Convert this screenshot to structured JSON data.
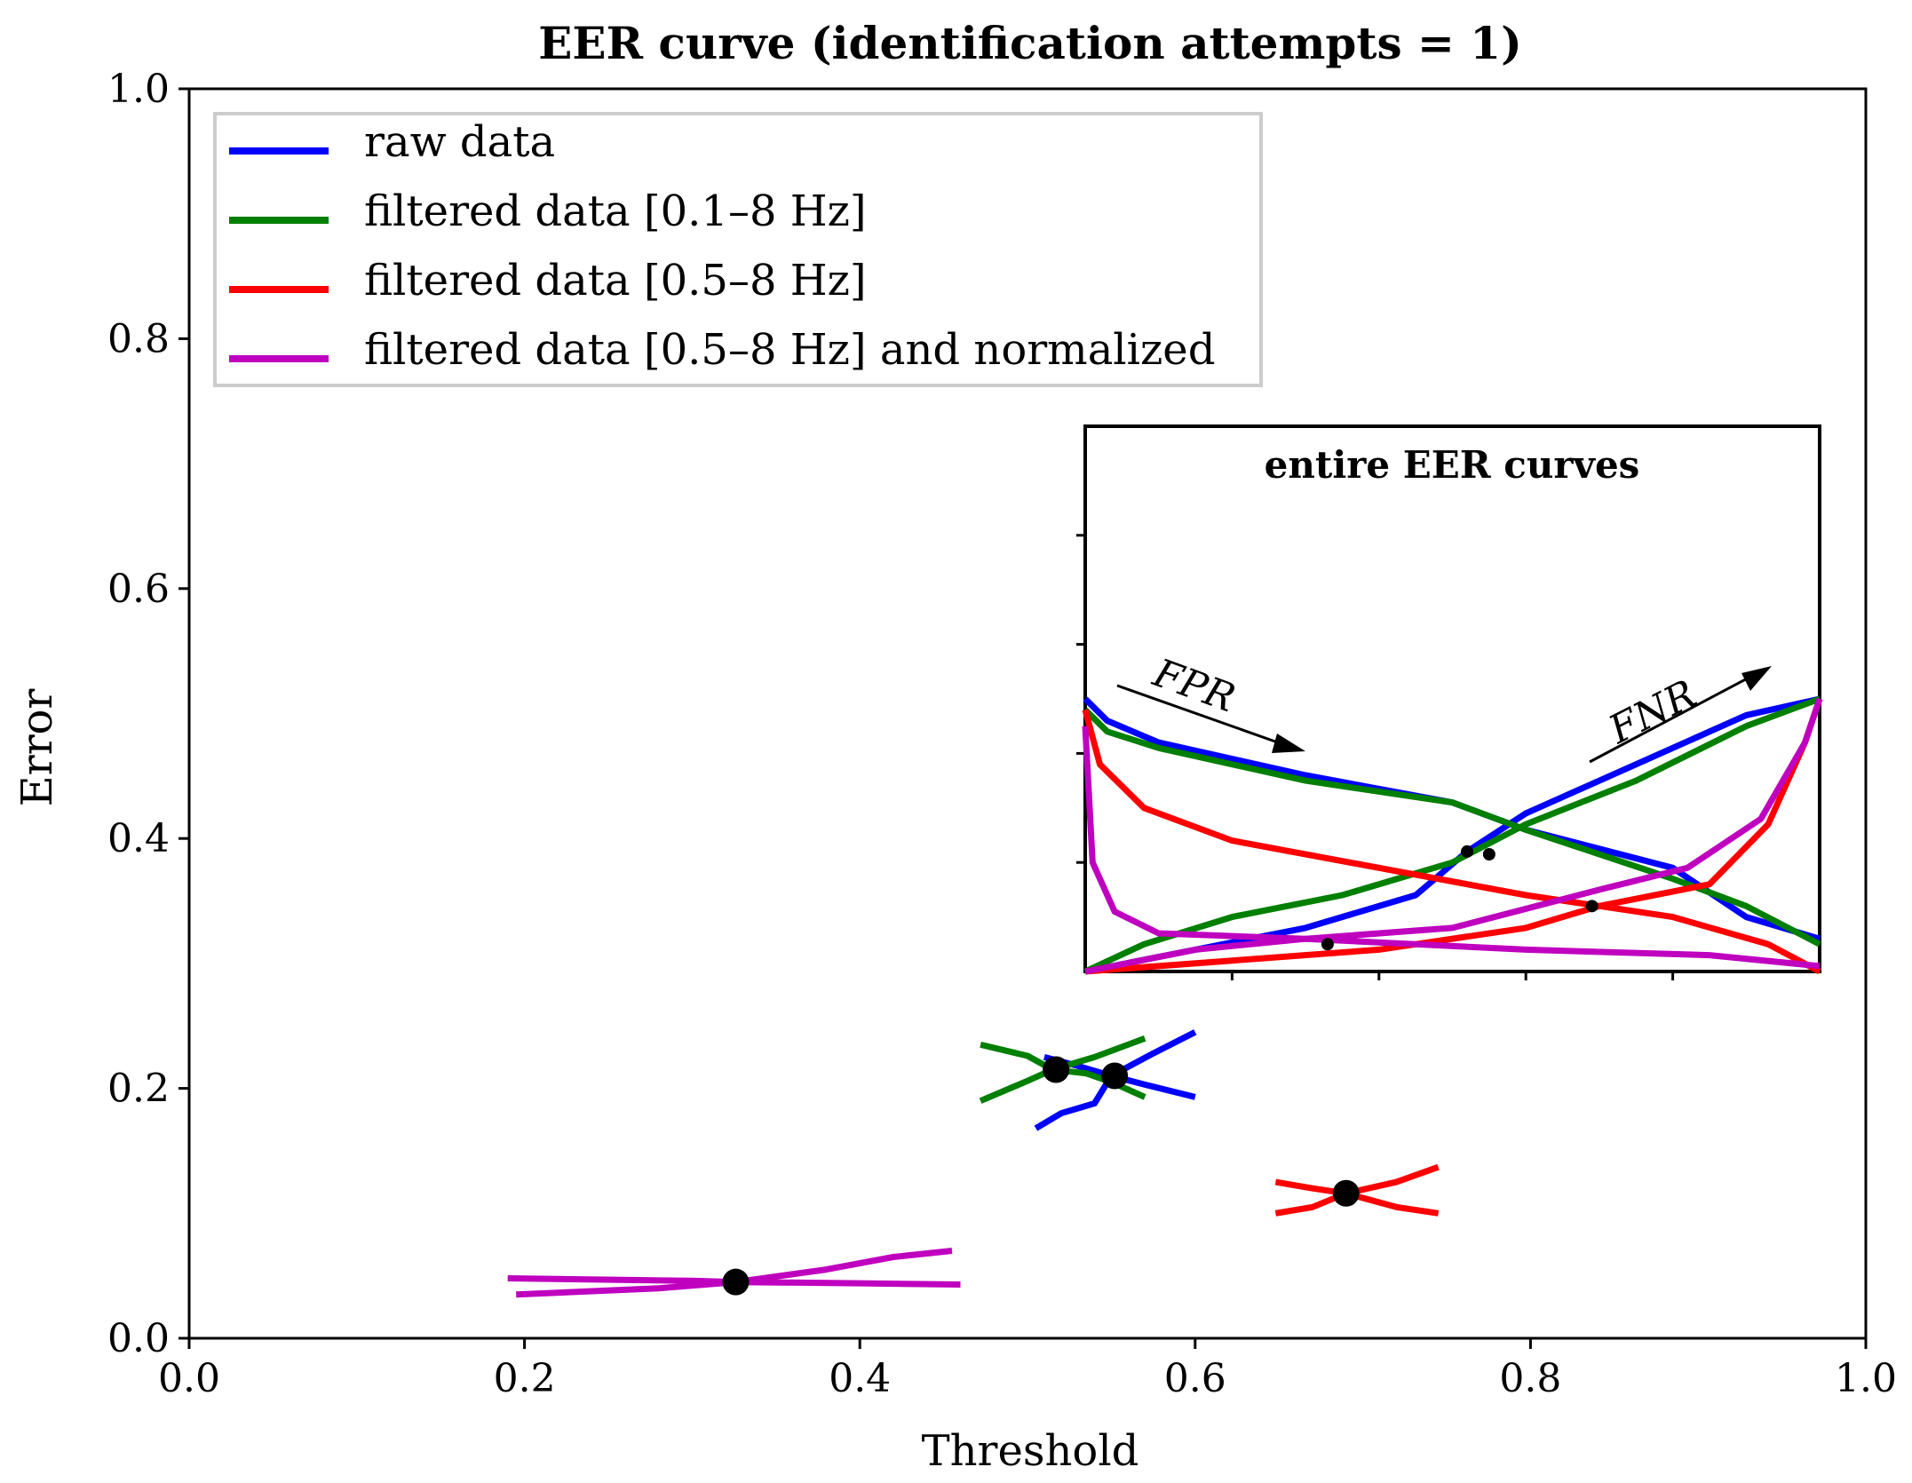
{
  "chart_data": {
    "type": "line",
    "title": "EER curve (identification attempts = 1)",
    "xlabel": "Threshold",
    "ylabel": "Error",
    "xlim": [
      0,
      1
    ],
    "ylim": [
      0,
      1
    ],
    "xticks": [
      "0.0",
      "0.2",
      "0.4",
      "0.6",
      "0.8",
      "1.0"
    ],
    "yticks": [
      "0.0",
      "0.2",
      "0.4",
      "0.6",
      "0.8",
      "1.0"
    ],
    "grid": false,
    "legend_position": "top-left",
    "series": [
      {
        "name": "raw data",
        "color": "#0000ff",
        "fpr": [
          [
            0.51,
            0.225
          ],
          [
            0.53,
            0.218
          ],
          [
            0.55,
            0.21
          ],
          [
            0.57,
            0.203
          ],
          [
            0.6,
            0.193
          ]
        ],
        "fnr": [
          [
            0.505,
            0.168
          ],
          [
            0.52,
            0.18
          ],
          [
            0.54,
            0.188
          ],
          [
            0.55,
            0.21
          ],
          [
            0.575,
            0.228
          ],
          [
            0.6,
            0.245
          ]
        ],
        "eer_point": [
          0.552,
          0.21
        ]
      },
      {
        "name": "filtered data [0.1–8 Hz]",
        "color": "#007f00",
        "fpr": [
          [
            0.472,
            0.235
          ],
          [
            0.5,
            0.226
          ],
          [
            0.515,
            0.215
          ],
          [
            0.535,
            0.212
          ],
          [
            0.55,
            0.205
          ],
          [
            0.57,
            0.193
          ]
        ],
        "fnr": [
          [
            0.472,
            0.19
          ],
          [
            0.5,
            0.206
          ],
          [
            0.515,
            0.215
          ],
          [
            0.54,
            0.225
          ],
          [
            0.57,
            0.24
          ]
        ],
        "eer_point": [
          0.517,
          0.215
        ]
      },
      {
        "name": "filtered data [0.5–8 Hz]",
        "color": "#ff0000",
        "fpr": [
          [
            0.648,
            0.125
          ],
          [
            0.67,
            0.12
          ],
          [
            0.69,
            0.116
          ],
          [
            0.72,
            0.105
          ],
          [
            0.745,
            0.1
          ]
        ],
        "fnr": [
          [
            0.648,
            0.1
          ],
          [
            0.67,
            0.105
          ],
          [
            0.69,
            0.116
          ],
          [
            0.72,
            0.125
          ],
          [
            0.745,
            0.137
          ]
        ],
        "eer_point": [
          0.69,
          0.116
        ]
      },
      {
        "name": "filtered data [0.5–8 Hz] and normalized",
        "color": "#bf00bf",
        "fpr": [
          [
            0.19,
            0.048
          ],
          [
            0.3,
            0.046
          ],
          [
            0.326,
            0.045
          ],
          [
            0.4,
            0.044
          ],
          [
            0.46,
            0.043
          ]
        ],
        "fnr": [
          [
            0.195,
            0.035
          ],
          [
            0.28,
            0.04
          ],
          [
            0.326,
            0.045
          ],
          [
            0.38,
            0.055
          ],
          [
            0.42,
            0.065
          ],
          [
            0.455,
            0.07
          ]
        ],
        "eer_point": [
          0.326,
          0.045
        ]
      }
    ],
    "inset": {
      "title": "entire EER curves",
      "annotations": [
        "FPR",
        "FNR"
      ]
    }
  }
}
